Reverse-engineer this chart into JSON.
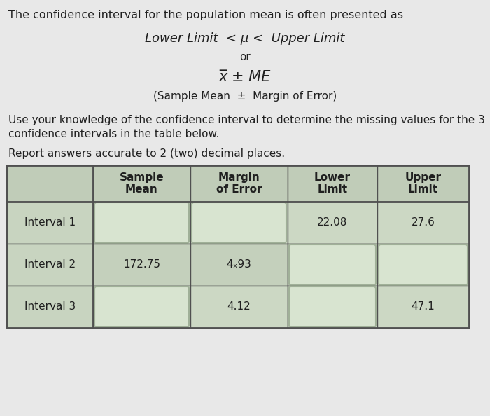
{
  "title_text": "The confidence interval for the population mean is often presented as",
  "formula_line1": "Lower Limit  < μ <  Upper Limit",
  "formula_or": "or",
  "formula_line2": "x̅ ± ME",
  "formula_line3": "(Sample Mean  ±  Margin of Error)",
  "body_text1": "Use your knowledge of the confidence interval to determine the missing values for the 3",
  "body_text2": "confidence intervals in the table below.",
  "body_text3": "Report answers accurate to 2 (two) decimal places.",
  "col_headers": [
    "Sample\nMean",
    "Margin\nof Error",
    "Lower\nLimit",
    "Upper\nLimit"
  ],
  "row_labels": [
    "Interval 1",
    "Interval 2",
    "Interval 3"
  ],
  "table_data": [
    [
      "",
      "",
      "22.08",
      "27.6"
    ],
    [
      "172.75",
      "4ₓ93",
      "",
      ""
    ],
    [
      "",
      "4.12",
      "",
      "47.1"
    ]
  ],
  "blank_cells": [
    [
      true,
      true,
      false,
      false
    ],
    [
      false,
      false,
      true,
      true
    ],
    [
      true,
      false,
      true,
      false
    ]
  ],
  "bg_color": "#e8e8e8",
  "table_outer_bg": "#b8c4b0",
  "row_label_bg": "#c8d4c0",
  "header_bg": "#c0ccb8",
  "data_cell_even": "#ccd8c4",
  "data_cell_odd": "#c4d0bc",
  "input_box_color": "#d8e4d0",
  "input_box_edge": "#a0b098",
  "border_color": "#505050",
  "text_color": "#202020",
  "font_size_title": 11.5,
  "font_size_body": 11,
  "font_size_formula": 13,
  "font_size_table": 11
}
